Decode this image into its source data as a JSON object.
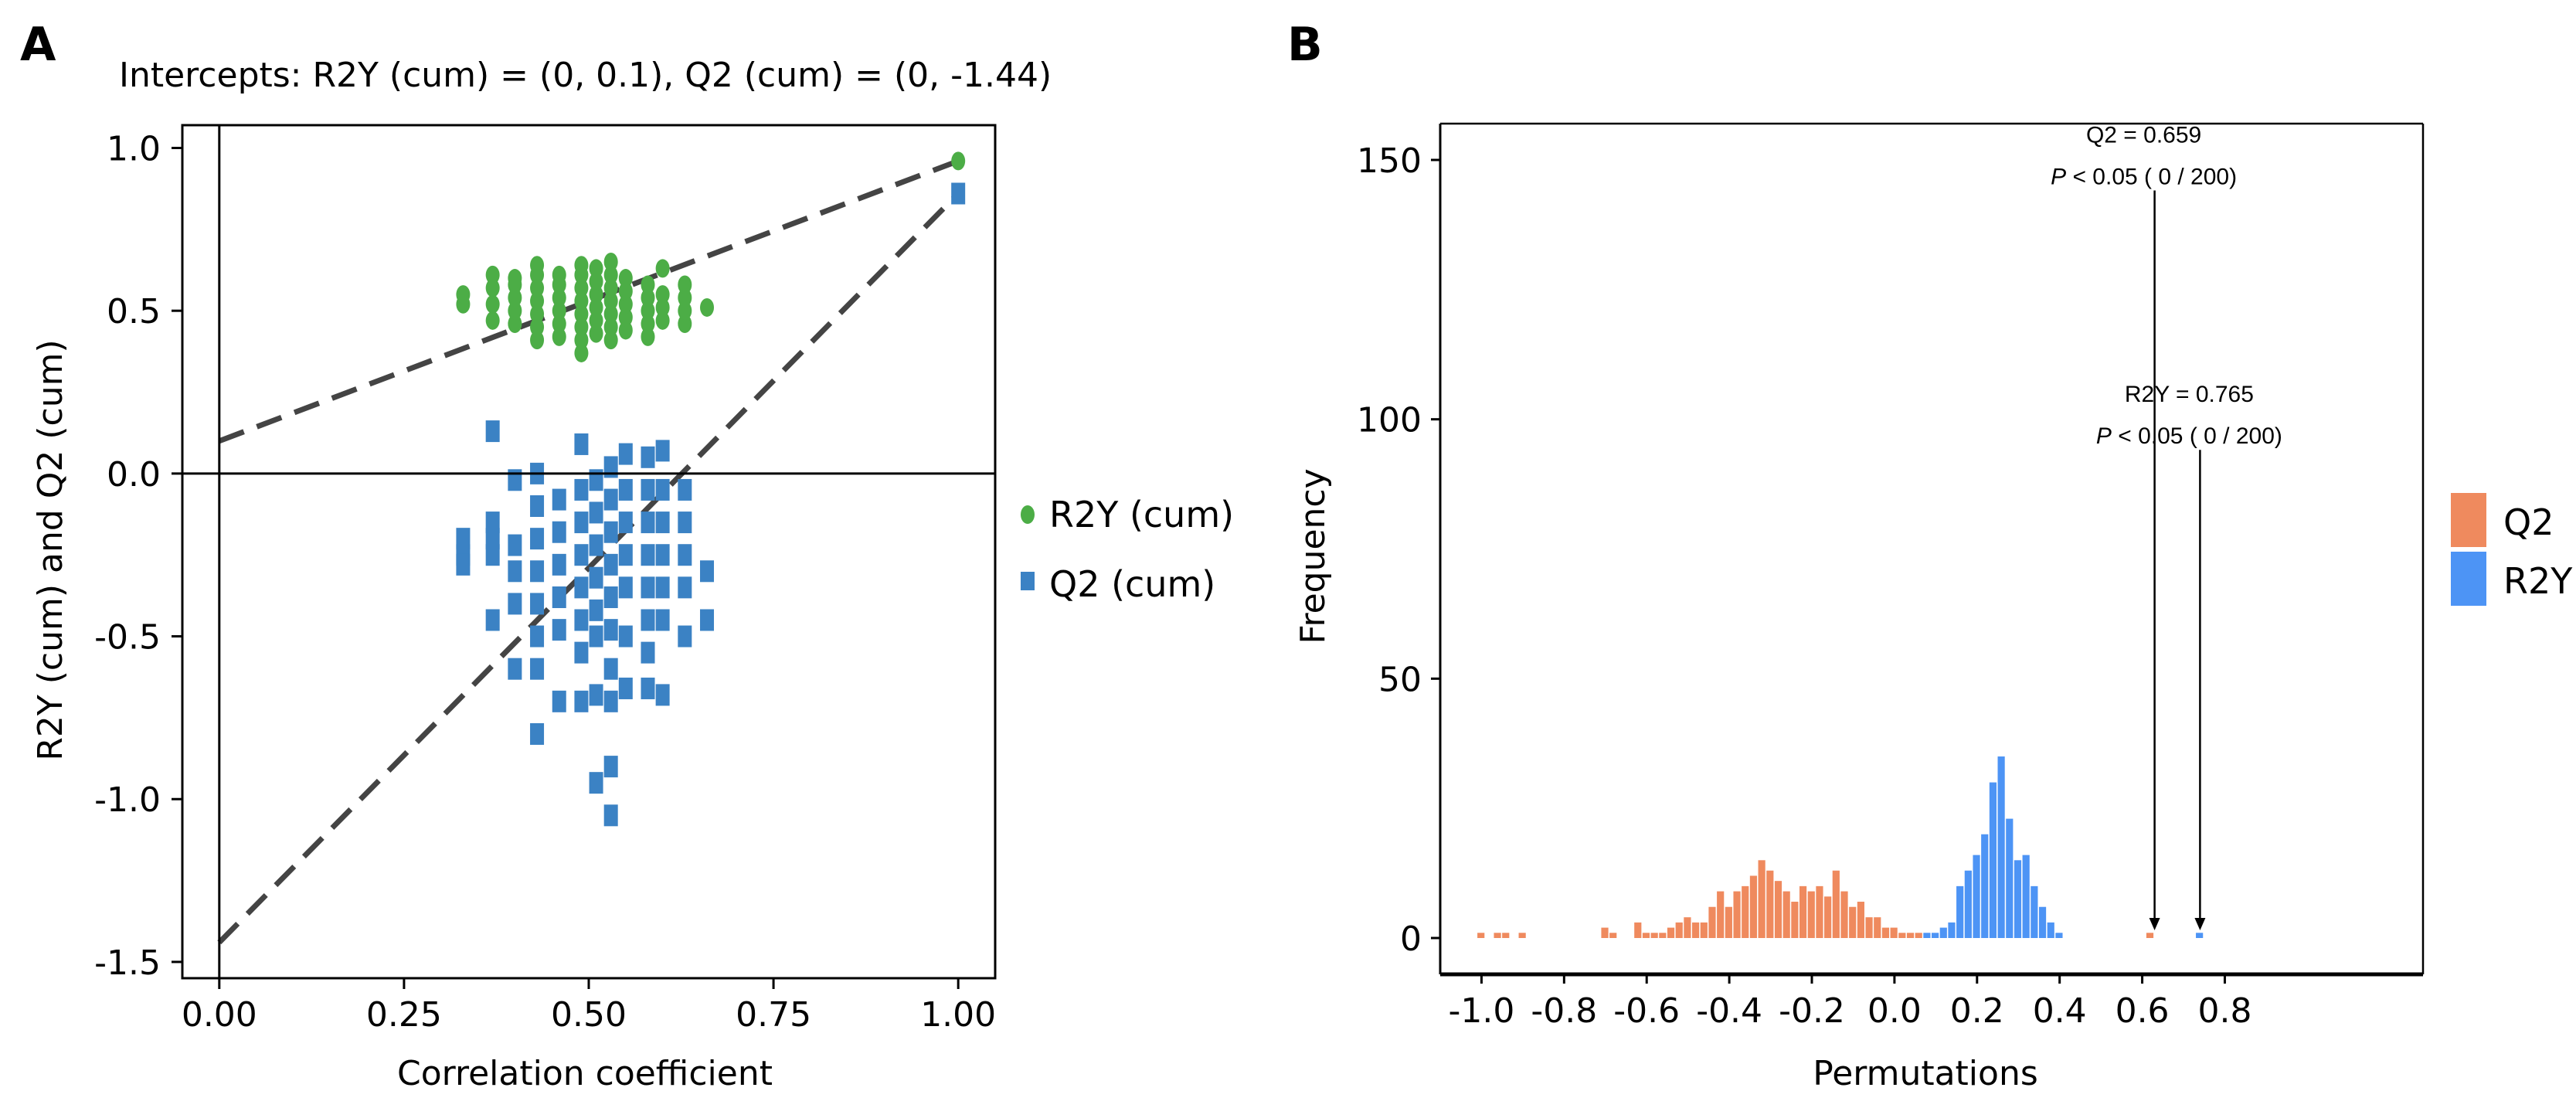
{
  "panels": {
    "a_letter": "A",
    "b_letter": "B"
  },
  "colors": {
    "r2y_green": "#4cad46",
    "q2_blue_a": "#3b82c4",
    "q2_orange": "#ef8a5e",
    "r2y_blue_b": "#4d94f5",
    "dashed": "#444444"
  },
  "chart_data": [
    {
      "type": "scatter",
      "title": "Intercepts: R2Y (cum) = (0, 0.1), Q2 (cum) = (0, -1.44)",
      "xlabel": "Correlation coefficient",
      "ylabel": "R2Y (cum) and Q2 (cum)",
      "xlim": [
        -0.05,
        1.05
      ],
      "ylim": [
        -1.55,
        1.07
      ],
      "xticks": [
        "0.00",
        "0.25",
        "0.50",
        "0.75",
        "1.00"
      ],
      "yticks": [
        "-1.5",
        "-1.0",
        "-0.5",
        "0.0",
        "0.5",
        "1.0"
      ],
      "legend_position": "right",
      "series": [
        {
          "name": "R2Y (cum)",
          "marker": "circle",
          "points": [
            [
              0.33,
              0.52
            ],
            [
              0.33,
              0.55
            ],
            [
              0.37,
              0.47
            ],
            [
              0.37,
              0.52
            ],
            [
              0.37,
              0.57
            ],
            [
              0.37,
              0.61
            ],
            [
              0.4,
              0.46
            ],
            [
              0.4,
              0.5
            ],
            [
              0.4,
              0.54
            ],
            [
              0.4,
              0.58
            ],
            [
              0.4,
              0.6
            ],
            [
              0.43,
              0.41
            ],
            [
              0.43,
              0.45
            ],
            [
              0.43,
              0.49
            ],
            [
              0.43,
              0.53
            ],
            [
              0.43,
              0.57
            ],
            [
              0.43,
              0.61
            ],
            [
              0.43,
              0.64
            ],
            [
              0.46,
              0.42
            ],
            [
              0.46,
              0.46
            ],
            [
              0.46,
              0.5
            ],
            [
              0.46,
              0.54
            ],
            [
              0.46,
              0.58
            ],
            [
              0.46,
              0.61
            ],
            [
              0.49,
              0.37
            ],
            [
              0.49,
              0.41
            ],
            [
              0.49,
              0.45
            ],
            [
              0.49,
              0.49
            ],
            [
              0.49,
              0.53
            ],
            [
              0.49,
              0.57
            ],
            [
              0.49,
              0.61
            ],
            [
              0.49,
              0.64
            ],
            [
              0.51,
              0.43
            ],
            [
              0.51,
              0.47
            ],
            [
              0.51,
              0.51
            ],
            [
              0.51,
              0.55
            ],
            [
              0.51,
              0.59
            ],
            [
              0.51,
              0.63
            ],
            [
              0.53,
              0.41
            ],
            [
              0.53,
              0.45
            ],
            [
              0.53,
              0.49
            ],
            [
              0.53,
              0.53
            ],
            [
              0.53,
              0.57
            ],
            [
              0.53,
              0.61
            ],
            [
              0.53,
              0.65
            ],
            [
              0.55,
              0.44
            ],
            [
              0.55,
              0.48
            ],
            [
              0.55,
              0.52
            ],
            [
              0.55,
              0.56
            ],
            [
              0.55,
              0.6
            ],
            [
              0.58,
              0.42
            ],
            [
              0.58,
              0.46
            ],
            [
              0.58,
              0.5
            ],
            [
              0.58,
              0.54
            ],
            [
              0.58,
              0.58
            ],
            [
              0.6,
              0.47
            ],
            [
              0.6,
              0.51
            ],
            [
              0.6,
              0.55
            ],
            [
              0.6,
              0.63
            ],
            [
              0.63,
              0.46
            ],
            [
              0.63,
              0.5
            ],
            [
              0.63,
              0.54
            ],
            [
              0.63,
              0.58
            ],
            [
              0.66,
              0.51
            ],
            [
              1.0,
              0.96
            ]
          ]
        },
        {
          "name": "Q2 (cum)",
          "marker": "square",
          "points": [
            [
              0.33,
              -0.2
            ],
            [
              0.33,
              -0.25
            ],
            [
              0.33,
              -0.28
            ],
            [
              0.37,
              -0.15
            ],
            [
              0.37,
              -0.2
            ],
            [
              0.37,
              -0.25
            ],
            [
              0.37,
              0.13
            ],
            [
              0.37,
              -0.45
            ],
            [
              0.4,
              -0.02
            ],
            [
              0.4,
              -0.22
            ],
            [
              0.4,
              -0.3
            ],
            [
              0.4,
              -0.4
            ],
            [
              0.4,
              -0.6
            ],
            [
              0.43,
              0.0
            ],
            [
              0.43,
              -0.1
            ],
            [
              0.43,
              -0.2
            ],
            [
              0.43,
              -0.3
            ],
            [
              0.43,
              -0.4
            ],
            [
              0.43,
              -0.5
            ],
            [
              0.43,
              -0.6
            ],
            [
              0.43,
              -0.8
            ],
            [
              0.46,
              -0.08
            ],
            [
              0.46,
              -0.18
            ],
            [
              0.46,
              -0.28
            ],
            [
              0.46,
              -0.38
            ],
            [
              0.46,
              -0.48
            ],
            [
              0.46,
              -0.7
            ],
            [
              0.49,
              0.09
            ],
            [
              0.49,
              -0.05
            ],
            [
              0.49,
              -0.15
            ],
            [
              0.49,
              -0.25
            ],
            [
              0.49,
              -0.35
            ],
            [
              0.49,
              -0.45
            ],
            [
              0.49,
              -0.55
            ],
            [
              0.49,
              -0.7
            ],
            [
              0.51,
              -0.02
            ],
            [
              0.51,
              -0.12
            ],
            [
              0.51,
              -0.22
            ],
            [
              0.51,
              -0.32
            ],
            [
              0.51,
              -0.42
            ],
            [
              0.51,
              -0.5
            ],
            [
              0.51,
              -0.68
            ],
            [
              0.51,
              -0.95
            ],
            [
              0.53,
              0.02
            ],
            [
              0.53,
              -0.08
            ],
            [
              0.53,
              -0.18
            ],
            [
              0.53,
              -0.28
            ],
            [
              0.53,
              -0.38
            ],
            [
              0.53,
              -0.48
            ],
            [
              0.53,
              -0.6
            ],
            [
              0.53,
              -0.7
            ],
            [
              0.53,
              -0.9
            ],
            [
              0.53,
              -1.05
            ],
            [
              0.55,
              0.06
            ],
            [
              0.55,
              -0.05
            ],
            [
              0.55,
              -0.15
            ],
            [
              0.55,
              -0.25
            ],
            [
              0.55,
              -0.35
            ],
            [
              0.55,
              -0.5
            ],
            [
              0.55,
              -0.66
            ],
            [
              0.58,
              0.05
            ],
            [
              0.58,
              -0.05
            ],
            [
              0.58,
              -0.15
            ],
            [
              0.58,
              -0.25
            ],
            [
              0.58,
              -0.35
            ],
            [
              0.58,
              -0.45
            ],
            [
              0.58,
              -0.55
            ],
            [
              0.58,
              -0.66
            ],
            [
              0.6,
              0.07
            ],
            [
              0.6,
              -0.05
            ],
            [
              0.6,
              -0.15
            ],
            [
              0.6,
              -0.25
            ],
            [
              0.6,
              -0.35
            ],
            [
              0.6,
              -0.45
            ],
            [
              0.6,
              -0.68
            ],
            [
              0.63,
              -0.05
            ],
            [
              0.63,
              -0.15
            ],
            [
              0.63,
              -0.25
            ],
            [
              0.63,
              -0.35
            ],
            [
              0.63,
              -0.5
            ],
            [
              0.66,
              -0.3
            ],
            [
              0.66,
              -0.45
            ],
            [
              1.0,
              0.86
            ]
          ]
        }
      ],
      "regression_lines": [
        {
          "series": "R2Y (cum)",
          "x": [
            0,
            1
          ],
          "y": [
            0.1,
            0.96
          ]
        },
        {
          "series": "Q2 (cum)",
          "x": [
            0,
            1
          ],
          "y": [
            -1.44,
            0.86
          ]
        }
      ]
    },
    {
      "type": "histogram",
      "title": "",
      "xlabel": "Permutations",
      "ylabel": "Frequency",
      "xlim": [
        -1.1,
        1.28
      ],
      "ylim": [
        -7,
        157
      ],
      "xticks": [
        "-1.0",
        "-0.8",
        "-0.6",
        "-0.4",
        "-0.2",
        "0.0",
        "0.2",
        "0.4",
        "0.6",
        "0.8"
      ],
      "yticks": [
        "0",
        "50",
        "100",
        "150"
      ],
      "bin_width": 0.02,
      "legend_position": "right",
      "series": [
        {
          "name": "Q2",
          "bin_centers": [
            -1.0,
            -0.96,
            -0.94,
            -0.9,
            -0.7,
            -0.68,
            -0.62,
            -0.6,
            -0.58,
            -0.56,
            -0.54,
            -0.52,
            -0.5,
            -0.48,
            -0.46,
            -0.44,
            -0.42,
            -0.4,
            -0.38,
            -0.36,
            -0.34,
            -0.32,
            -0.3,
            -0.28,
            -0.26,
            -0.24,
            -0.22,
            -0.2,
            -0.18,
            -0.16,
            -0.14,
            -0.12,
            -0.1,
            -0.08,
            -0.06,
            -0.04,
            -0.02,
            0.0,
            0.02,
            0.04,
            0.06,
            0.62
          ],
          "counts": [
            1,
            1,
            1,
            1,
            2,
            1,
            3,
            1,
            1,
            1,
            2,
            3,
            4,
            3,
            3,
            6,
            9,
            6,
            9,
            10,
            12,
            15,
            13,
            11,
            9,
            7,
            10,
            9,
            10,
            8,
            13,
            9,
            6,
            7,
            4,
            4,
            2,
            2,
            1,
            1,
            1,
            1
          ]
        },
        {
          "name": "R2Y",
          "bin_centers": [
            0.08,
            0.1,
            0.12,
            0.14,
            0.16,
            0.18,
            0.2,
            0.22,
            0.24,
            0.26,
            0.28,
            0.3,
            0.32,
            0.34,
            0.36,
            0.38,
            0.4,
            0.74
          ],
          "counts": [
            1,
            1,
            2,
            3,
            10,
            13,
            16,
            20,
            30,
            35,
            23,
            15,
            16,
            10,
            6,
            3,
            1,
            1
          ]
        }
      ],
      "annotations": [
        {
          "label": "Q2 =  0.659",
          "p_label": "P",
          "p_text": "< 0.05 ( 0 / 200)",
          "x": 0.63,
          "y_top": 145
        },
        {
          "label": "R2Y =  0.765",
          "p_label": "P",
          "p_text": "< 0.05 ( 0 / 200)",
          "x": 0.74,
          "y_top": 95
        }
      ]
    }
  ]
}
